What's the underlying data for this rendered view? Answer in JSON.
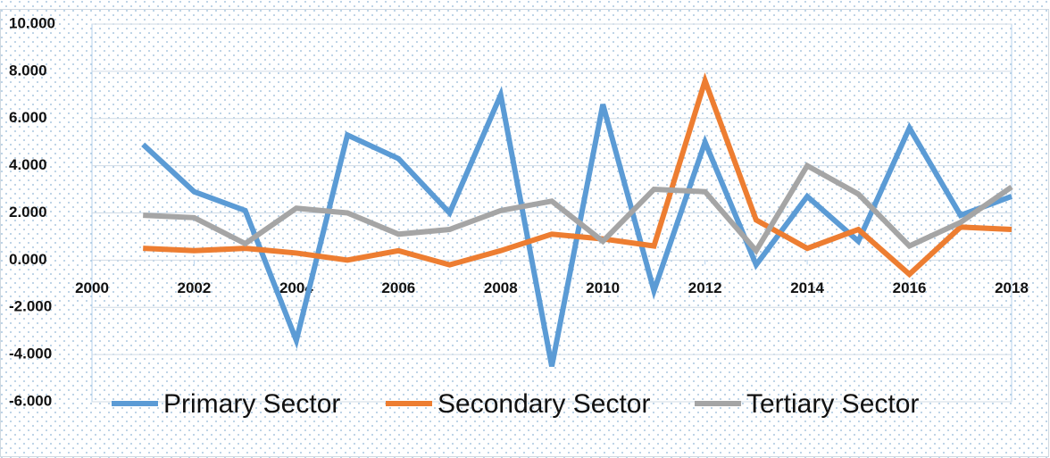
{
  "chart_data": {
    "type": "line",
    "x": [
      2001,
      2002,
      2003,
      2004,
      2005,
      2006,
      2007,
      2008,
      2009,
      2010,
      2011,
      2012,
      2013,
      2014,
      2015,
      2016,
      2017,
      2018
    ],
    "series": [
      {
        "name": "Primary Sector",
        "color": "#5b9bd5",
        "values": [
          4.9,
          2.9,
          2.1,
          -3.4,
          5.3,
          4.3,
          2.0,
          7.0,
          -4.5,
          6.6,
          -1.3,
          5.0,
          -0.2,
          2.7,
          0.8,
          5.6,
          1.9,
          2.7
        ]
      },
      {
        "name": "Secondary Sector",
        "color": "#ed7d31",
        "values": [
          0.5,
          0.4,
          0.5,
          0.3,
          0.0,
          0.4,
          -0.2,
          0.4,
          1.1,
          0.9,
          0.6,
          7.6,
          1.7,
          0.5,
          1.3,
          -0.6,
          1.4,
          1.3
        ]
      },
      {
        "name": "Tertiary Sector",
        "color": "#a5a5a5",
        "values": [
          1.9,
          1.8,
          0.7,
          2.2,
          2.0,
          1.1,
          1.3,
          2.1,
          2.5,
          0.8,
          3.0,
          2.9,
          0.4,
          4.0,
          2.8,
          0.6,
          1.6,
          3.1
        ]
      }
    ],
    "xlim": [
      2000,
      2018
    ],
    "xticks": [
      2000,
      2002,
      2004,
      2006,
      2008,
      2010,
      2012,
      2014,
      2016,
      2018
    ],
    "ylim": [
      -6,
      10
    ],
    "yticks": [
      {
        "value": -6,
        "label": "-6.000"
      },
      {
        "value": -4,
        "label": "-4.000"
      },
      {
        "value": -2,
        "label": "-2.000"
      },
      {
        "value": 0,
        "label": "0.000"
      },
      {
        "value": 2,
        "label": "2.000"
      },
      {
        "value": 4,
        "label": "4.000"
      },
      {
        "value": 6,
        "label": "6.000"
      },
      {
        "value": 8,
        "label": "8.000"
      },
      {
        "value": 10,
        "label": "10.000"
      }
    ],
    "grid": true,
    "legend": "bottom"
  }
}
